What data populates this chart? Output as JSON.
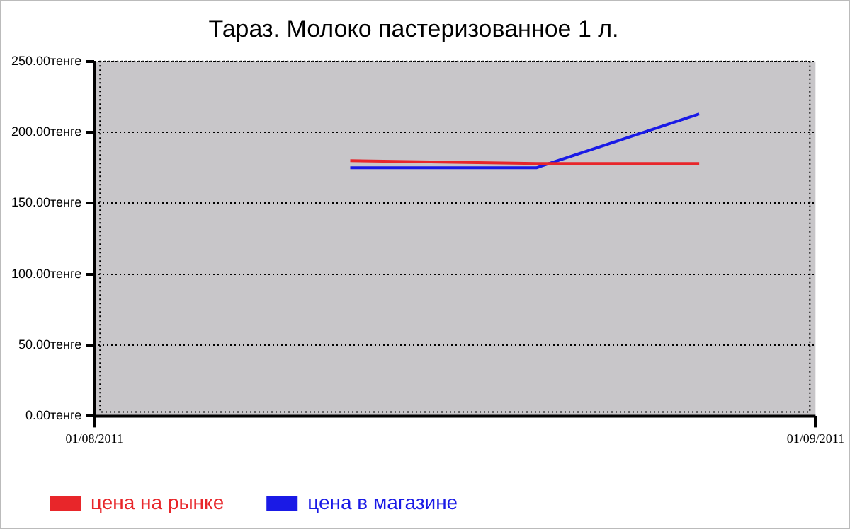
{
  "chart_data": {
    "type": "line",
    "title": "Тараз. Молоко пастеризованное 1 л.",
    "xlim": [
      "2011-08-01",
      "2011-09-01"
    ],
    "xticks": [
      {
        "value": "2011-08-01",
        "label": "01/08/2011"
      },
      {
        "value": "2011-09-01",
        "label": "01/09/2011"
      }
    ],
    "ylim": [
      0,
      250
    ],
    "yticks": [
      {
        "value": 0,
        "label": "0.00тенге"
      },
      {
        "value": 50,
        "label": "50.00тенге"
      },
      {
        "value": 100,
        "label": "100.00тенге"
      },
      {
        "value": 150,
        "label": "150.00тенге"
      },
      {
        "value": 200,
        "label": "200.00тенге"
      },
      {
        "value": 250,
        "label": "250.00тенге"
      }
    ],
    "series": [
      {
        "name": "цена на рынке",
        "color": "#e8262a",
        "x": [
          "2011-08-12",
          "2011-08-20",
          "2011-08-27"
        ],
        "values": [
          180,
          178,
          178
        ]
      },
      {
        "name": "цена в магазине",
        "color": "#1a1ae6",
        "x": [
          "2011-08-12",
          "2011-08-20",
          "2011-08-27"
        ],
        "values": [
          175,
          175,
          213
        ]
      }
    ],
    "grid": true,
    "legend": "bottom left",
    "marker": "none",
    "line_style": "solid"
  }
}
